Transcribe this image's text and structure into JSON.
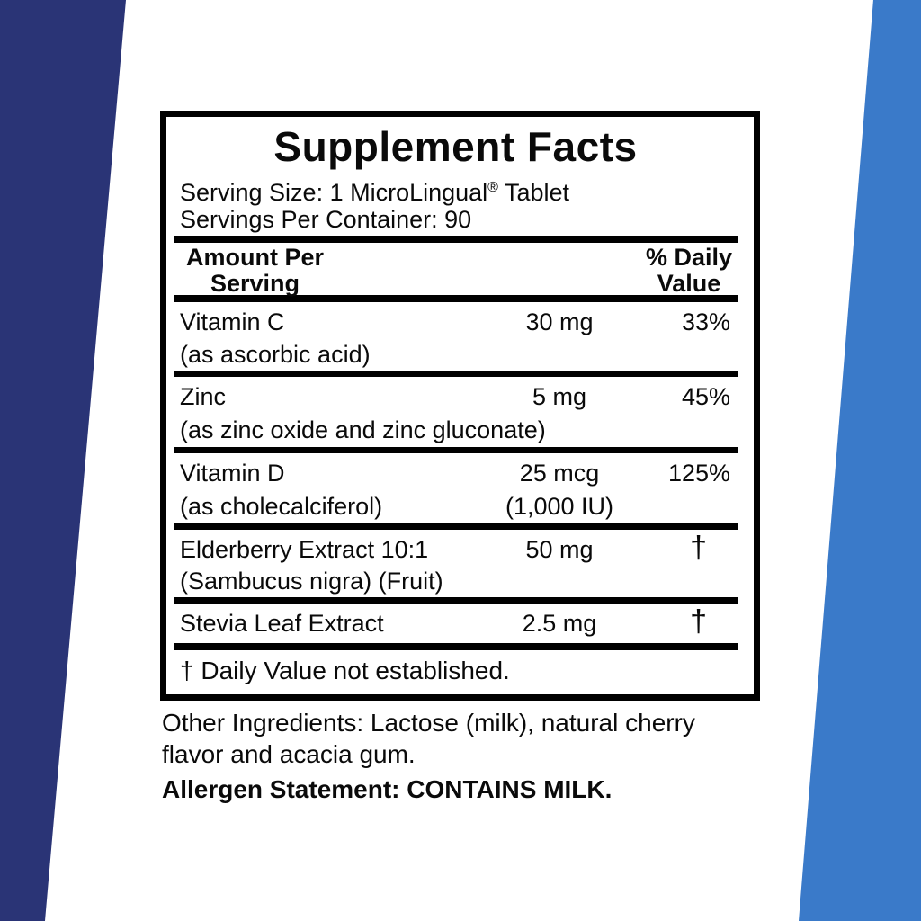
{
  "page": {
    "left_band_color": "#2a3476",
    "right_band_color": "#3a7ac9",
    "paper_color": "#ffffff",
    "text_color": "#0a0a0a"
  },
  "panel": {
    "title": "Supplement Facts",
    "serving_size_prefix": "Serving Size: 1 MicroLingual",
    "serving_size_reg": "®",
    "serving_size_suffix": " Tablet",
    "servings_per_container": "Servings Per Container: 90",
    "header": {
      "amount_line1": "Amount Per",
      "amount_line2": "Serving",
      "dv_line1": "% Daily",
      "dv_line2": "Value"
    },
    "rows": [
      {
        "name": "Vitamin C",
        "detail": "(as ascorbic acid)",
        "amount": "30 mg",
        "amount2": "",
        "dv": "33%"
      },
      {
        "name": "Zinc",
        "detail": "(as zinc oxide and zinc gluconate)",
        "amount": "5 mg",
        "amount2": "",
        "dv": "45%"
      },
      {
        "name": "Vitamin D",
        "detail": "(as cholecalciferol)",
        "amount": "25 mcg",
        "amount2": "(1,000 IU)",
        "dv": "125%"
      },
      {
        "name": "Elderberry Extract 10:1",
        "detail": "(Sambucus nigra) (Fruit)",
        "amount": "50 mg",
        "amount2": "",
        "dv": "†"
      },
      {
        "name": "Stevia Leaf Extract",
        "detail": "",
        "amount": "2.5 mg",
        "amount2": "",
        "dv": "†"
      }
    ],
    "footnote": "† Daily Value not established."
  },
  "below": {
    "other_ingredients_line1": "Other Ingredients: Lactose (milk), natural cherry",
    "other_ingredients_line2": "flavor and acacia gum.",
    "allergen": "Allergen Statement: CONTAINS MILK."
  }
}
